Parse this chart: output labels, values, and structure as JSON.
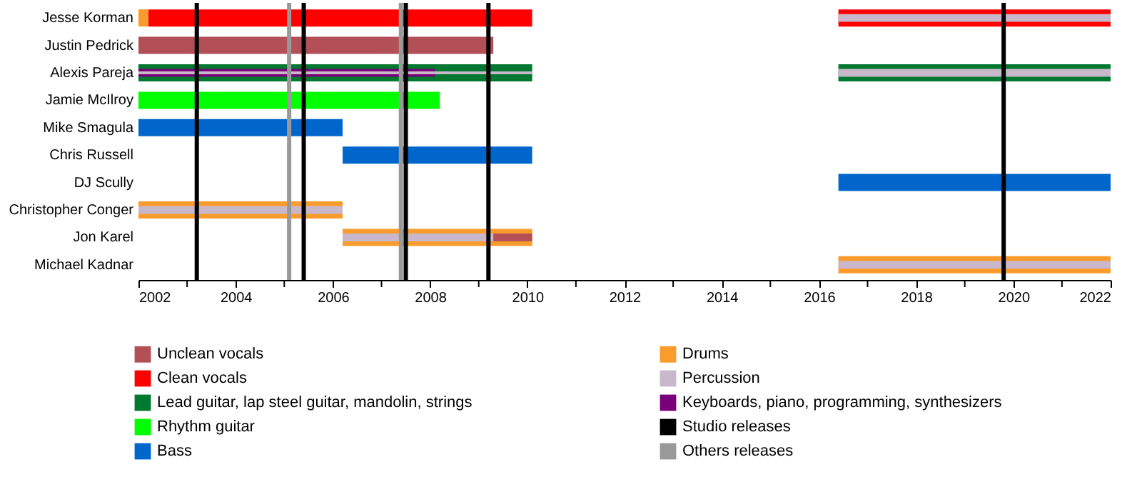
{
  "chart_data": {
    "type": "bar",
    "orientation": "horizontal",
    "legend": "bottom",
    "categories": [
      "Jesse Korman",
      "Justin Pedrick",
      "Alexis Pareja",
      "Jamie McIlroy",
      "Mike Smagula",
      "Chris Russell",
      "DJ Scully",
      "Christopher Conger",
      "Jon Karel",
      "Michael Kadnar"
    ],
    "xlim": [
      2002,
      2022
    ],
    "xticks": [
      2002,
      {
        "value": 2003,
        "label": null
      },
      2004,
      {
        "value": 2005,
        "label": null
      },
      2006,
      {
        "value": 2007,
        "label": null
      },
      2008,
      {
        "value": 2009,
        "label": null
      },
      2010,
      {
        "value": 2011,
        "label": null
      },
      2012,
      {
        "value": 2013,
        "label": null
      },
      2014,
      {
        "value": 2015,
        "label": null
      },
      2016,
      {
        "value": 2017,
        "label": null
      },
      2018,
      {
        "value": 2019,
        "label": null
      },
      2020,
      {
        "value": 2021,
        "label": null
      },
      2022
    ],
    "series": [
      {
        "name": "Unclean vocals",
        "color": "#b34f56",
        "values": [
          null,
          7.3,
          null,
          null,
          null,
          null,
          null,
          null,
          null,
          null
        ],
        "base": [
          null,
          2002,
          null,
          null,
          null,
          null,
          null,
          null,
          null,
          null
        ]
      },
      {
        "name": "Clean vocals",
        "color": "#ff0000",
        "values": [
          7.9,
          null,
          null,
          null,
          null,
          null,
          null,
          null,
          null,
          null
        ],
        "base": [
          2002.2,
          null,
          null,
          null,
          null,
          null,
          null,
          null,
          null,
          null
        ]
      },
      {
        "color": "#ff0000",
        "values": [
          5.6,
          null,
          null,
          null,
          null,
          null,
          null,
          null,
          null,
          null
        ],
        "base": [
          2016.4,
          null,
          null,
          null,
          null,
          null,
          null,
          null,
          null,
          null
        ]
      },
      {
        "name": "Lead guitar, lap steel guitar, mandolin, strings",
        "color": "#00782f",
        "values": [
          null,
          null,
          8.1,
          null,
          null,
          null,
          null,
          null,
          null,
          null
        ],
        "base": [
          null,
          null,
          2002,
          null,
          null,
          null,
          null,
          null,
          null,
          null
        ]
      },
      {
        "color": "#00782f",
        "values": [
          null,
          null,
          5.6,
          null,
          null,
          null,
          null,
          null,
          null,
          null
        ],
        "base": [
          null,
          null,
          2016.4,
          null,
          null,
          null,
          null,
          null,
          null,
          null
        ]
      },
      {
        "name": "Rhythm guitar",
        "color": "#00ff00",
        "values": [
          null,
          null,
          null,
          6.2,
          null,
          null,
          null,
          null,
          null,
          null
        ],
        "base": [
          null,
          null,
          null,
          2002,
          null,
          null,
          null,
          null,
          null,
          null
        ]
      },
      {
        "name": "Bass",
        "color": "#0066cc",
        "values": [
          null,
          null,
          null,
          null,
          4.2,
          3.9,
          5.6,
          null,
          null,
          null
        ],
        "base": [
          null,
          null,
          null,
          null,
          2002,
          2006.2,
          2016.4,
          null,
          null,
          null
        ]
      },
      {
        "name": "Drums",
        "color": "#fa9c2c",
        "values": [
          0.2,
          null,
          null,
          null,
          null,
          null,
          null,
          4.2,
          3.9,
          5.6
        ],
        "base": [
          2002,
          null,
          null,
          null,
          null,
          null,
          null,
          2002,
          2006.2,
          2016.4
        ]
      },
      {
        "name": "Percussion",
        "color": "#c9b8cc",
        "values": [
          5.6,
          null,
          null,
          null,
          null,
          null,
          null,
          4.2,
          3.1,
          5.6
        ],
        "base": [
          2016.4,
          null,
          null,
          null,
          null,
          null,
          null,
          2002,
          2006.2,
          2016.4
        ]
      },
      {
        "name": "Keyboards, piano, programming, synthesizers",
        "color": "#7a007a",
        "values": [
          null,
          null,
          6.1,
          null,
          null,
          null,
          null,
          null,
          null,
          null
        ],
        "base": [
          null,
          null,
          2002,
          null,
          null,
          null,
          null,
          null,
          null,
          null
        ]
      },
      {
        "color": "#c9b8cc",
        "values": [
          null,
          null,
          8.1,
          null,
          null,
          null,
          null,
          null,
          null,
          null
        ],
        "base": [
          null,
          null,
          2002,
          null,
          null,
          null,
          null,
          null,
          null,
          null
        ]
      },
      {
        "color": "#c9b8cc",
        "values": [
          null,
          null,
          5.6,
          null,
          null,
          null,
          null,
          null,
          null,
          null
        ],
        "base": [
          null,
          null,
          2016.4,
          null,
          null,
          null,
          null,
          null,
          null,
          null
        ]
      },
      {
        "color": "#b34f56",
        "values": [
          null,
          null,
          null,
          null,
          null,
          null,
          null,
          null,
          0.8,
          null
        ],
        "base": [
          null,
          null,
          null,
          null,
          null,
          null,
          null,
          null,
          2009.3,
          null
        ]
      }
    ],
    "ref_lines": [
      {
        "axis": "x",
        "value": 2003.2,
        "label": "Studio releases",
        "color": "#000000"
      },
      {
        "axis": "x",
        "value": 2005.4,
        "color": "#000000"
      },
      {
        "axis": "x",
        "value": 2007.5,
        "color": "#000000"
      },
      {
        "axis": "x",
        "value": 2009.2,
        "color": "#000000"
      },
      {
        "axis": "x",
        "value": 2019.8,
        "color": "#000000"
      },
      {
        "axis": "x",
        "value": 2005.1,
        "label": "Others releases",
        "color": "#999999"
      },
      {
        "axis": "x",
        "value": 2007.4,
        "color": "#999999"
      }
    ]
  }
}
